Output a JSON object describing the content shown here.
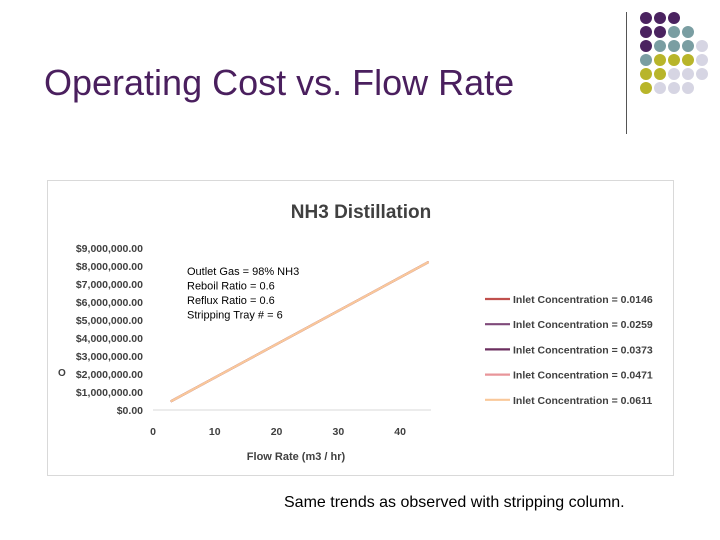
{
  "slide": {
    "title": "Operating Cost vs. Flow Rate",
    "caption": "Same trends as observed with stripping column.",
    "decoration_colors": {
      "purple": "#4b2360",
      "teal": "#7a9ea2",
      "olive": "#b8b52a",
      "lavender": "#d6d5e3"
    }
  },
  "chart_data": {
    "type": "line",
    "title": "NH3 Distillation",
    "xlabel": "Flow Rate (m3 / hr)",
    "ylabel": "O",
    "xlim": [
      0,
      45
    ],
    "ylim": [
      0,
      9000000
    ],
    "x_ticks": [
      "0",
      "10",
      "20",
      "30",
      "40"
    ],
    "y_ticks": [
      "$0.00",
      "$1,000,000.00",
      "$2,000,000.00",
      "$3,000,000.00",
      "$4,000,000.00",
      "$5,000,000.00",
      "$6,000,000.00",
      "$7,000,000.00",
      "$8,000,000.00",
      "$9,000,000.00"
    ],
    "annotation": [
      "Outlet Gas = 98% NH3",
      "Reboil Ratio = 0.6",
      "Reflux Ratio = 0.6",
      "Stripping Tray # = 6"
    ],
    "legend_position": "right",
    "series": [
      {
        "name": "Inlet Concentration = 0.0146",
        "color": "#c0504d",
        "x": [
          3,
          44.5
        ],
        "y": [
          500000,
          8200000
        ]
      },
      {
        "name": "Inlet Concentration = 0.0259",
        "color": "#7f4a7a",
        "x": [
          3,
          44.5
        ],
        "y": [
          500000,
          8200000
        ]
      },
      {
        "name": "Inlet Concentration = 0.0373",
        "color": "#6b2f5f",
        "x": [
          3,
          44.5
        ],
        "y": [
          500000,
          8200000
        ]
      },
      {
        "name": "Inlet Concentration = 0.0471",
        "color": "#e8959a",
        "x": [
          3,
          44.5
        ],
        "y": [
          500000,
          8200000
        ]
      },
      {
        "name": "Inlet Concentration = 0.0611",
        "color": "#f9c89a",
        "x": [
          3,
          44.5
        ],
        "y": [
          500000,
          8200000
        ]
      }
    ]
  }
}
